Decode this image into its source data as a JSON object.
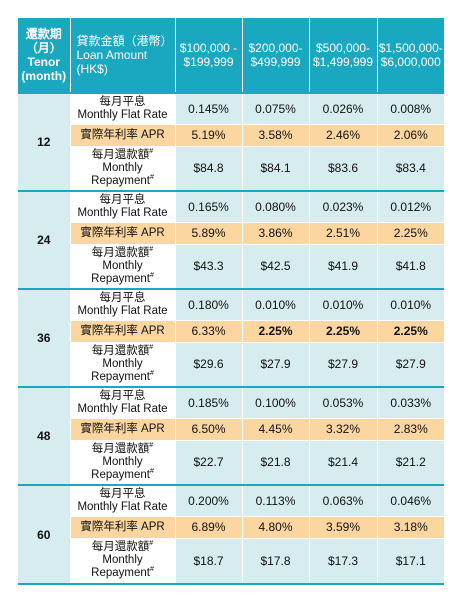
{
  "header": {
    "tenor_zh": "還款期（月）",
    "tenor_en": "Tenor (month)",
    "amount_zh": "貸款金額（港幣）",
    "amount_en": "Loan Amount (HK$)",
    "ranges": [
      {
        "line1": "$100,000 -",
        "line2": "$199,999"
      },
      {
        "line1": "$200,000-",
        "line2": "$499,999"
      },
      {
        "line1": "$500,000-",
        "line2": "$1,499,999"
      },
      {
        "line1": "$1,500,000-",
        "line2": "$6,000,000"
      }
    ]
  },
  "labels": {
    "flat_zh": "每月平息",
    "flat_en": "Monthly Flat Rate",
    "apr": "實際年利率 APR",
    "rep_zh": "每月還款額",
    "rep_en1": "Monthly",
    "rep_en2": "Repayment",
    "note_mark": "#"
  },
  "rows": [
    {
      "tenor": "12",
      "flat": [
        "0.145%",
        "0.075%",
        "0.026%",
        "0.008%"
      ],
      "apr": [
        "5.19%",
        "3.58%",
        "2.46%",
        "2.06%"
      ],
      "rep": [
        "$84.8",
        "$84.1",
        "$83.6",
        "$83.4"
      ]
    },
    {
      "tenor": "24",
      "flat": [
        "0.165%",
        "0.080%",
        "0.023%",
        "0.012%"
      ],
      "apr": [
        "5.89%",
        "3.86%",
        "2.51%",
        "2.25%"
      ],
      "rep": [
        "$43.3",
        "$42.5",
        "$41.9",
        "$41.8"
      ]
    },
    {
      "tenor": "36",
      "flat": [
        "0.180%",
        "0.010%",
        "0.010%",
        "0.010%"
      ],
      "apr": [
        "6.33%",
        "2.25%",
        "2.25%",
        "2.25%"
      ],
      "rep": [
        "$29.6",
        "$27.9",
        "$27.9",
        "$27.9"
      ]
    },
    {
      "tenor": "48",
      "flat": [
        "0.185%",
        "0.100%",
        "0.053%",
        "0.033%"
      ],
      "apr": [
        "6.50%",
        "4.45%",
        "3.32%",
        "2.83%"
      ],
      "rep": [
        "$22.7",
        "$21.8",
        "$21.4",
        "$21.2"
      ]
    },
    {
      "tenor": "60",
      "flat": [
        "0.200%",
        "0.113%",
        "0.063%",
        "0.046%"
      ],
      "apr": [
        "6.89%",
        "4.80%",
        "3.59%",
        "3.18%"
      ],
      "rep": [
        "$18.7",
        "$17.8",
        "$17.3",
        "$17.1"
      ]
    }
  ],
  "colors": {
    "header": "#1aa7c0",
    "light": "#d6ecee",
    "apr": "#fbd6a0"
  }
}
